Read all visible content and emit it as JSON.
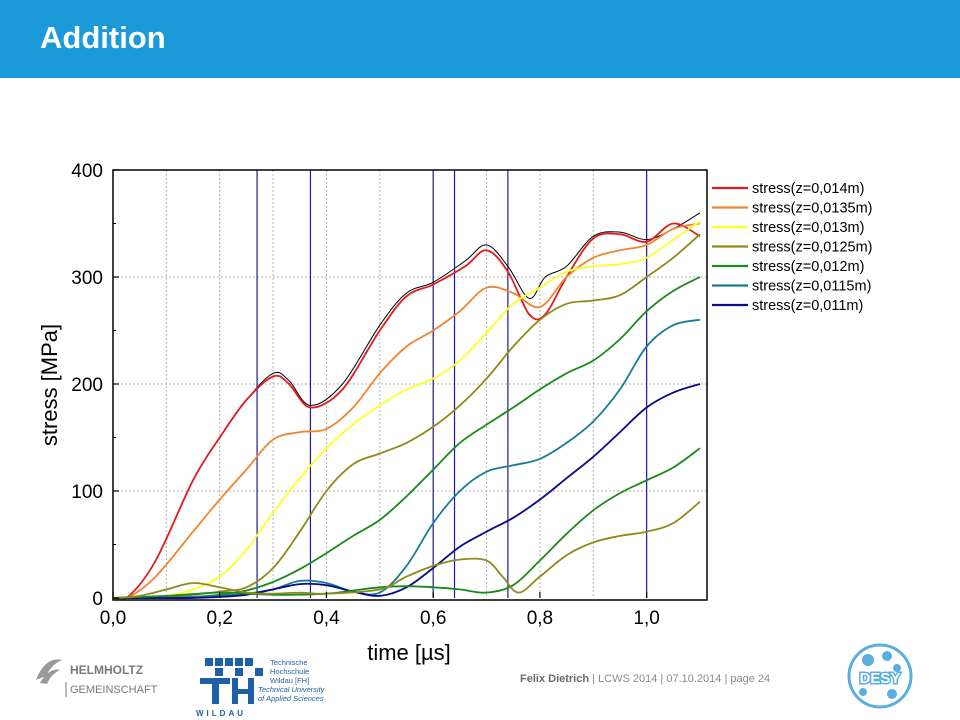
{
  "page": {
    "title": "Addition"
  },
  "footer": {
    "author": "Felix Dietrich",
    "event": "LCWS 2014",
    "date": "07.10.2014",
    "page_label": "page 24",
    "sep": " | "
  },
  "logos": {
    "helmholtz_line1": "HELMHOLTZ",
    "helmholtz_line2": "GEMEINSCHAFT",
    "th_line1": "Technische",
    "th_line2": "Hochschule",
    "th_line3": "Wildau [FH]",
    "th_line4": "Technical University",
    "th_line5": "of Applied Sciences",
    "th_wildau": "WILDAU",
    "desy": "DESY"
  },
  "chart_data": {
    "type": "line",
    "xlabel": "time [µs]",
    "ylabel": "stress [MPa]",
    "xlim": [
      0,
      1.1
    ],
    "ylim": [
      0,
      400
    ],
    "xticks": [
      "0,0",
      "0,2",
      "0,4",
      "0,6",
      "0,8",
      "1,0"
    ],
    "yticks": [
      "0",
      "100",
      "200",
      "300",
      "400"
    ],
    "grid": true,
    "legend_position": "top-right",
    "vertical_markers": [
      0.27,
      0.37,
      0.6,
      0.64,
      0.74,
      1.0
    ],
    "series": [
      {
        "name": "",
        "color": "#000000",
        "x": [
          0,
          0.03,
          0.08,
          0.15,
          0.2,
          0.25,
          0.3,
          0.33,
          0.37,
          0.43,
          0.5,
          0.55,
          0.6,
          0.66,
          0.7,
          0.74,
          0.78,
          0.81,
          0.85,
          0.9,
          0.95,
          1.0,
          1.05,
          1.1
        ],
        "y": [
          0,
          2,
          35,
          110,
          150,
          185,
          210,
          203,
          180,
          200,
          255,
          285,
          295,
          315,
          330,
          310,
          280,
          300,
          310,
          338,
          342,
          335,
          345,
          360
        ]
      },
      {
        "name": "stress(z=0,014m)",
        "color": "#e41a1c",
        "x": [
          0,
          0.03,
          0.08,
          0.15,
          0.2,
          0.25,
          0.3,
          0.33,
          0.37,
          0.43,
          0.5,
          0.55,
          0.6,
          0.66,
          0.7,
          0.74,
          0.78,
          0.81,
          0.85,
          0.9,
          0.95,
          1.0,
          1.05,
          1.1
        ],
        "y": [
          0,
          2,
          35,
          110,
          150,
          185,
          207,
          200,
          178,
          195,
          250,
          282,
          293,
          310,
          325,
          305,
          265,
          265,
          300,
          336,
          340,
          333,
          350,
          338
        ]
      },
      {
        "name": "stress(z=0,0135m)",
        "color": "#f28530",
        "x": [
          0,
          0.03,
          0.08,
          0.15,
          0.2,
          0.25,
          0.3,
          0.35,
          0.4,
          0.45,
          0.5,
          0.55,
          0.6,
          0.65,
          0.7,
          0.75,
          0.8,
          0.85,
          0.9,
          0.95,
          1.0,
          1.05,
          1.1
        ],
        "y": [
          0,
          1,
          20,
          62,
          92,
          120,
          148,
          155,
          158,
          178,
          210,
          235,
          250,
          268,
          290,
          285,
          272,
          300,
          318,
          325,
          330,
          345,
          350
        ]
      },
      {
        "name": "stress(z=0,013m)",
        "color": "#ffff26",
        "x": [
          0,
          0.05,
          0.1,
          0.15,
          0.2,
          0.25,
          0.3,
          0.35,
          0.4,
          0.45,
          0.5,
          0.55,
          0.6,
          0.65,
          0.7,
          0.75,
          0.8,
          0.85,
          0.9,
          0.95,
          1.0,
          1.05,
          1.1
        ],
        "y": [
          0,
          0,
          2,
          8,
          20,
          45,
          80,
          112,
          140,
          162,
          180,
          195,
          205,
          222,
          248,
          275,
          290,
          305,
          310,
          312,
          318,
          335,
          352
        ]
      },
      {
        "name": "stress(z=0,0125m)",
        "color": "#8f8a1a",
        "x": [
          0,
          0.05,
          0.1,
          0.15,
          0.2,
          0.25,
          0.3,
          0.35,
          0.4,
          0.45,
          0.5,
          0.55,
          0.6,
          0.65,
          0.7,
          0.75,
          0.8,
          0.85,
          0.9,
          0.95,
          1.0,
          1.05,
          1.1
        ],
        "y": [
          0,
          0,
          1,
          3,
          6,
          10,
          28,
          62,
          100,
          125,
          135,
          145,
          160,
          180,
          205,
          235,
          260,
          275,
          278,
          283,
          300,
          318,
          340
        ]
      },
      {
        "name": "stress(z=0,012m)",
        "color": "#1a8a1a",
        "x": [
          0,
          0.05,
          0.1,
          0.15,
          0.2,
          0.25,
          0.3,
          0.35,
          0.4,
          0.45,
          0.5,
          0.55,
          0.6,
          0.65,
          0.7,
          0.75,
          0.8,
          0.85,
          0.9,
          0.95,
          1.0,
          1.05,
          1.1
        ],
        "y": [
          0,
          0,
          0,
          1,
          3,
          7,
          15,
          27,
          42,
          58,
          73,
          95,
          120,
          145,
          162,
          178,
          195,
          210,
          222,
          242,
          268,
          287,
          300
        ]
      },
      {
        "name": "stress(z=0,0115m)",
        "color": "#1a7a9a",
        "x": [
          0,
          0.05,
          0.1,
          0.15,
          0.2,
          0.25,
          0.3,
          0.35,
          0.4,
          0.45,
          0.5,
          0.55,
          0.6,
          0.65,
          0.7,
          0.75,
          0.8,
          0.85,
          0.9,
          0.95,
          1.0,
          1.05,
          1.1
        ],
        "y": [
          0,
          0,
          0,
          1,
          2,
          4,
          8,
          16,
          14,
          6,
          5,
          30,
          70,
          100,
          118,
          124,
          130,
          145,
          165,
          195,
          235,
          255,
          260
        ]
      },
      {
        "name": "stress(z=0,011m)",
        "color": "#0a0a8a",
        "x": [
          0,
          0.05,
          0.1,
          0.15,
          0.2,
          0.25,
          0.3,
          0.35,
          0.4,
          0.45,
          0.5,
          0.55,
          0.6,
          0.65,
          0.7,
          0.75,
          0.8,
          0.85,
          0.9,
          0.95,
          1.0,
          1.05,
          1.1
        ],
        "y": [
          0,
          0,
          0,
          0,
          1,
          3,
          8,
          13,
          12,
          6,
          2,
          10,
          28,
          48,
          62,
          75,
          92,
          112,
          132,
          155,
          178,
          192,
          200
        ]
      },
      {
        "name": "",
        "color": "#1a8a1a",
        "x": [
          0,
          0.1,
          0.2,
          0.3,
          0.4,
          0.45,
          0.5,
          0.55,
          0.6,
          0.65,
          0.7,
          0.75,
          0.8,
          0.85,
          0.9,
          0.95,
          1.0,
          1.05,
          1.1
        ],
        "y": [
          0,
          2,
          5,
          3,
          4,
          7,
          10,
          11,
          10,
          8,
          5,
          12,
          35,
          60,
          82,
          98,
          110,
          122,
          140
        ]
      },
      {
        "name": "",
        "color": "#8f8a1a",
        "x": [
          0,
          0.05,
          0.1,
          0.15,
          0.2,
          0.25,
          0.3,
          0.35,
          0.4,
          0.5,
          0.55,
          0.6,
          0.65,
          0.7,
          0.73,
          0.76,
          0.8,
          0.85,
          0.9,
          0.95,
          1.0,
          1.05,
          1.1
        ],
        "y": [
          0,
          2,
          8,
          14,
          10,
          5,
          4,
          5,
          4,
          8,
          20,
          30,
          36,
          35,
          20,
          5,
          20,
          40,
          52,
          58,
          62,
          70,
          90
        ]
      }
    ]
  }
}
